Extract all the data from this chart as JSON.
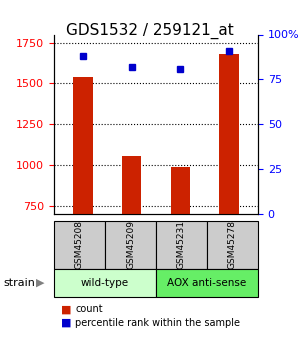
{
  "title": "GDS1532 / 259121_at",
  "samples": [
    "GSM45208",
    "GSM45209",
    "GSM45231",
    "GSM45278"
  ],
  "counts": [
    1540,
    1055,
    985,
    1680
  ],
  "percentiles": [
    88,
    82,
    81,
    91
  ],
  "groups": [
    {
      "label": "wild-type",
      "samples": [
        0,
        1
      ],
      "color": "#ccffcc"
    },
    {
      "label": "AOX anti-sense",
      "samples": [
        2,
        3
      ],
      "color": "#66ee66"
    }
  ],
  "ylim_left": [
    700,
    1800
  ],
  "ylim_right": [
    0,
    100
  ],
  "yticks_left": [
    750,
    1000,
    1250,
    1500,
    1750
  ],
  "yticks_right": [
    0,
    25,
    50,
    75,
    100
  ],
  "bar_color": "#cc2200",
  "dot_color": "#0000cc",
  "bar_bottom": 700,
  "strain_label": "strain",
  "legend_count_label": "count",
  "legend_pct_label": "percentile rank within the sample",
  "sample_box_color": "#cccccc"
}
